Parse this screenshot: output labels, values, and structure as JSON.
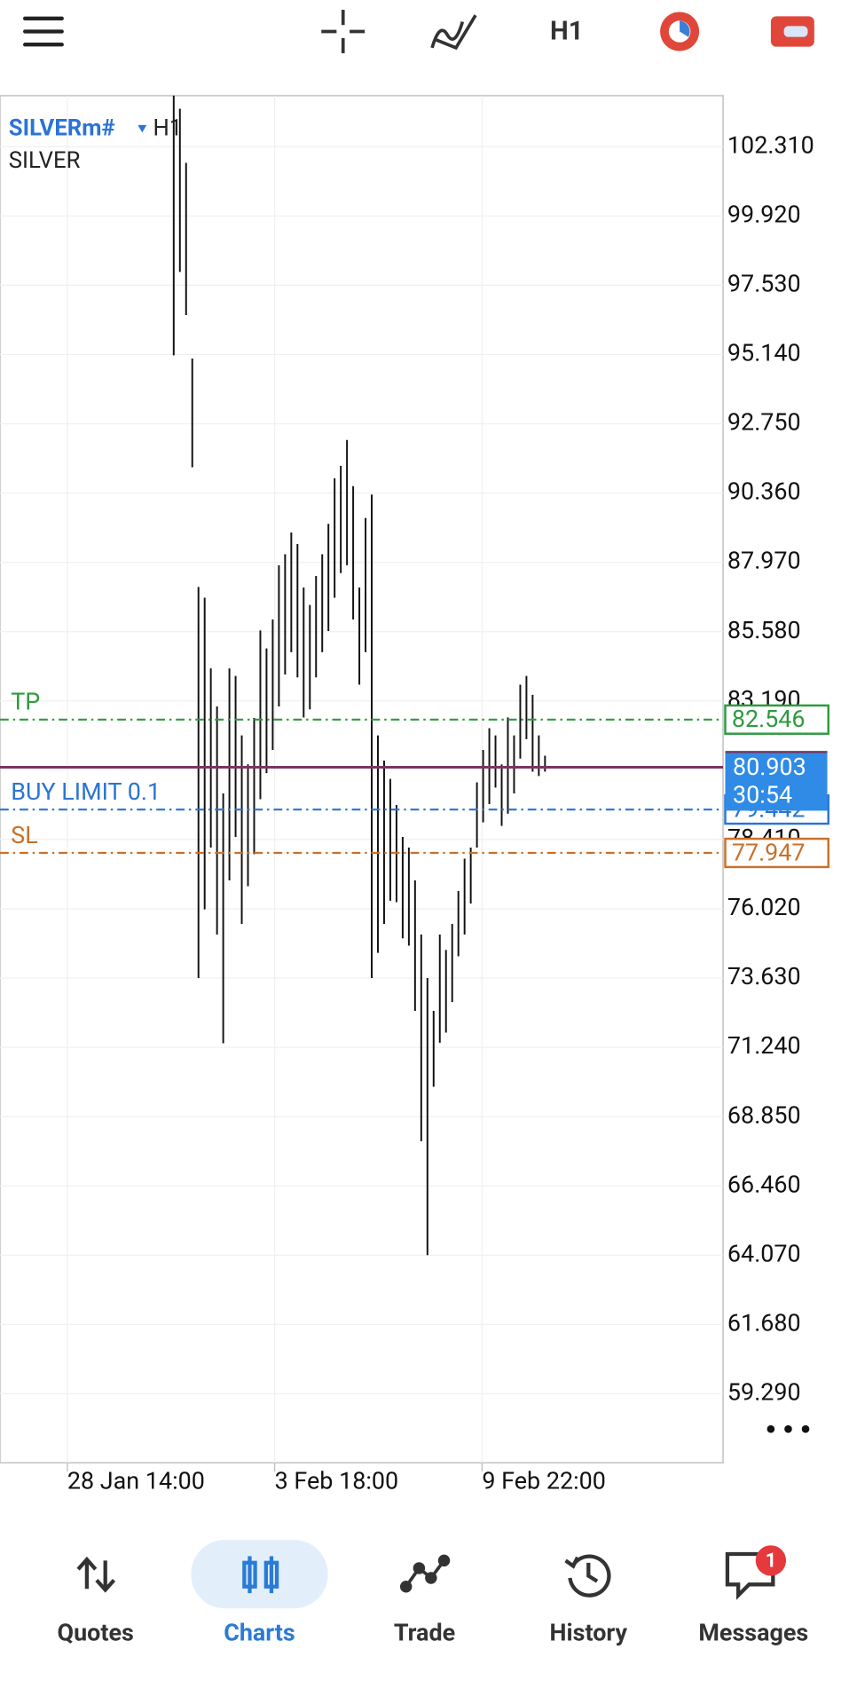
{
  "toolbar": {
    "timeframe": "H1"
  },
  "header": {
    "symbol": "SILVERm#",
    "timeframe": "H1",
    "description": "SILVER"
  },
  "chart_data": {
    "type": "ohlc",
    "high": [
      104.07,
      103.62,
      101.75,
      95.0,
      87.12,
      86.75,
      84.31,
      83.0,
      80.0,
      84.31,
      84.05,
      82.0,
      81.0,
      82.6,
      85.62,
      85.0,
      86.0,
      87.87,
      88.25,
      89.0,
      88.6,
      87.1,
      86.5,
      87.5,
      88.25,
      89.3,
      90.87,
      91.3,
      92.19,
      90.6,
      87.1,
      89.5,
      90.31,
      82.0,
      81.13,
      80.5,
      79.6,
      78.5,
      78.13,
      77.0,
      75.13,
      73.63,
      72.5,
      75.13,
      74.6,
      75.5,
      76.63,
      77.75,
      78.13,
      80.38,
      81.5,
      82.25,
      82.0,
      81.0,
      82.62,
      82.0,
      83.75,
      84.05,
      83.4,
      82.0,
      81.3
    ],
    "low": [
      95.11,
      97.99,
      96.5,
      91.25,
      73.63,
      76.0,
      78.13,
      75.13,
      71.38,
      77.0,
      78.5,
      75.5,
      76.8,
      77.9,
      79.8,
      80.7,
      81.5,
      83.0,
      84.1,
      84.87,
      84.0,
      82.62,
      82.9,
      84.0,
      84.87,
      85.6,
      86.75,
      87.6,
      87.87,
      86.0,
      83.75,
      84.87,
      73.63,
      74.5,
      75.5,
      76.3,
      76.25,
      75.0,
      74.75,
      72.5,
      68.0,
      64.07,
      69.88,
      71.4,
      71.75,
      72.8,
      74.38,
      75.13,
      76.2,
      78.13,
      79.0,
      79.63,
      80.2,
      78.88,
      79.3,
      80.0,
      81.2,
      81.87,
      80.75,
      80.6,
      80.75
    ],
    "color": "#111111",
    "ylim": [
      56.91,
      104.07
    ],
    "yticks": [
      {
        "value": 102.31,
        "label": "102.310"
      },
      {
        "value": 99.92,
        "label": "99.920"
      },
      {
        "value": 97.53,
        "label": "97.530"
      },
      {
        "value": 95.14,
        "label": "95.140"
      },
      {
        "value": 92.75,
        "label": "92.750"
      },
      {
        "value": 90.36,
        "label": "90.360"
      },
      {
        "value": 87.97,
        "label": "87.970"
      },
      {
        "value": 85.58,
        "label": "85.580"
      },
      {
        "value": 83.19,
        "label": "83.190"
      },
      {
        "value": 78.41,
        "label": "78.410"
      },
      {
        "value": 76.02,
        "label": "76.020"
      },
      {
        "value": 73.63,
        "label": "73.630"
      },
      {
        "value": 71.24,
        "label": "71.240"
      },
      {
        "value": 68.85,
        "label": "68.850"
      },
      {
        "value": 66.46,
        "label": "66.460"
      },
      {
        "value": 64.07,
        "label": "64.070"
      },
      {
        "value": 61.68,
        "label": "61.680"
      },
      {
        "value": 59.29,
        "label": "59.290"
      }
    ],
    "x_labels": [
      "28 Jan 14:00",
      "3 Feb 18:00",
      "9 Feb 22:00"
    ],
    "grid": true,
    "levels": [
      {
        "label": "TP",
        "value": 82.546,
        "color": "#2e9a3e"
      },
      {
        "label": "BUY LIMIT 0.1",
        "value": 79.442,
        "color": "#2a74d4"
      },
      {
        "label": "SL",
        "value": 77.947,
        "color": "#c8702a"
      }
    ],
    "price": {
      "value": 80.903,
      "countdown": "30:54",
      "color": "#2f8be6",
      "line_color": "#7a3560"
    }
  },
  "nav": {
    "items": [
      "Quotes",
      "Charts",
      "Trade",
      "History",
      "Messages"
    ],
    "active": "Charts",
    "badge": 1
  }
}
